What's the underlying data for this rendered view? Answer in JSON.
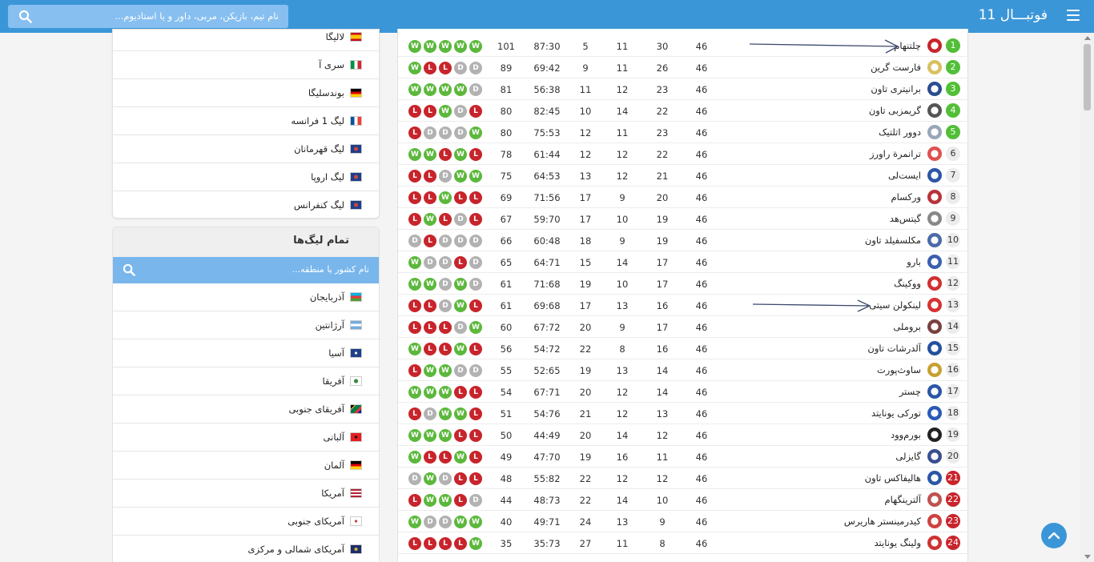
{
  "header": {
    "brand": "فوتبـــال 11",
    "search_placeholder": "نام تیم، بازیکن، مربی، داور و یا استادیوم..."
  },
  "sidebar_top": {
    "items": [
      {
        "label": "لالیگا",
        "flag": "spain"
      },
      {
        "label": "سری آ",
        "flag": "italy"
      },
      {
        "label": "بوندسلیگا",
        "flag": "germany"
      },
      {
        "label": "لیگ 1 فرانسه",
        "flag": "france"
      },
      {
        "label": "لیگ قهرمانان",
        "flag": "uefa"
      },
      {
        "label": "لیگ اروپا",
        "flag": "uefa"
      },
      {
        "label": "لیگ کنفرانس",
        "flag": "uefa"
      }
    ]
  },
  "all_leagues": {
    "title": "تمام لیگ‌ها",
    "search_placeholder": "نام کشور یا منطقه...",
    "items": [
      {
        "label": "آذربایجان",
        "flag": "azerbaijan"
      },
      {
        "label": "آرژانتین",
        "flag": "argentina"
      },
      {
        "label": "آسیا",
        "flag": "asia"
      },
      {
        "label": "آفریقا",
        "flag": "africa"
      },
      {
        "label": "آفریقای جنوبی",
        "flag": "south-africa"
      },
      {
        "label": "آلبانی",
        "flag": "albania"
      },
      {
        "label": "آلمان",
        "flag": "germany"
      },
      {
        "label": "آمریکا",
        "flag": "usa"
      },
      {
        "label": "آمریکای جنوبی",
        "flag": "south-america"
      },
      {
        "label": "آمریکای شمالی و مرکزی",
        "flag": "concacaf"
      }
    ]
  },
  "standings": {
    "rows": [
      {
        "rank": "1",
        "zone": "promotion",
        "team": "چلتنهام",
        "crest": "#c8242b",
        "played": "46",
        "won": "30",
        "drawn": "11",
        "lost": "5",
        "goals": "87:30",
        "points": "101",
        "form": [
          "W",
          "W",
          "W",
          "W",
          "W"
        ]
      },
      {
        "rank": "2",
        "zone": "promotion",
        "team": "فارست گرین",
        "crest": "#d8c060",
        "played": "46",
        "won": "26",
        "drawn": "11",
        "lost": "9",
        "goals": "69:42",
        "points": "89",
        "form": [
          "D",
          "D",
          "L",
          "L",
          "W"
        ]
      },
      {
        "rank": "3",
        "zone": "promotion",
        "team": "برانیتری تاون",
        "crest": "#2a4d8f",
        "played": "46",
        "won": "23",
        "drawn": "12",
        "lost": "11",
        "goals": "56:38",
        "points": "81",
        "form": [
          "D",
          "W",
          "W",
          "W",
          "W"
        ]
      },
      {
        "rank": "4",
        "zone": "promotion",
        "team": "گریمزبی تاون",
        "crest": "#555555",
        "played": "46",
        "won": "22",
        "drawn": "14",
        "lost": "10",
        "goals": "82:45",
        "points": "80",
        "form": [
          "L",
          "D",
          "W",
          "L",
          "L"
        ]
      },
      {
        "rank": "5",
        "zone": "promotion",
        "team": "دوور اتلتیک",
        "crest": "#9aa6b8",
        "played": "46",
        "won": "23",
        "drawn": "11",
        "lost": "12",
        "goals": "75:53",
        "points": "80",
        "form": [
          "W",
          "D",
          "D",
          "D",
          "L"
        ]
      },
      {
        "rank": "6",
        "zone": "none",
        "team": "ترانمرة راورز",
        "crest": "#e05050",
        "played": "46",
        "won": "22",
        "drawn": "12",
        "lost": "12",
        "goals": "61:44",
        "points": "78",
        "form": [
          "L",
          "W",
          "L",
          "W",
          "W"
        ]
      },
      {
        "rank": "7",
        "zone": "none",
        "team": "ایست‌لی",
        "crest": "#2a56a8",
        "played": "46",
        "won": "21",
        "drawn": "12",
        "lost": "13",
        "goals": "64:53",
        "points": "75",
        "form": [
          "W",
          "W",
          "D",
          "L",
          "L"
        ]
      },
      {
        "rank": "8",
        "zone": "none",
        "team": "ورکسام",
        "crest": "#b8323a",
        "played": "46",
        "won": "20",
        "drawn": "9",
        "lost": "17",
        "goals": "71:56",
        "points": "69",
        "form": [
          "L",
          "L",
          "W",
          "L",
          "L"
        ]
      },
      {
        "rank": "9",
        "zone": "none",
        "team": "گیتس‌هد",
        "crest": "#888888",
        "played": "46",
        "won": "19",
        "drawn": "10",
        "lost": "17",
        "goals": "59:70",
        "points": "67",
        "form": [
          "L",
          "D",
          "L",
          "W",
          "L"
        ]
      },
      {
        "rank": "10",
        "zone": "none",
        "team": "مکلسفیلد تاون",
        "crest": "#4a6aa8",
        "played": "46",
        "won": "19",
        "drawn": "9",
        "lost": "18",
        "goals": "60:48",
        "points": "66",
        "form": [
          "D",
          "D",
          "D",
          "L",
          "D"
        ]
      },
      {
        "rank": "11",
        "zone": "none",
        "team": "بارو",
        "crest": "#3a5fb0",
        "played": "46",
        "won": "17",
        "drawn": "14",
        "lost": "15",
        "goals": "64:71",
        "points": "65",
        "form": [
          "D",
          "L",
          "D",
          "D",
          "W"
        ]
      },
      {
        "rank": "12",
        "zone": "none",
        "team": "ووکینگ",
        "crest": "#d03030",
        "played": "46",
        "won": "17",
        "drawn": "10",
        "lost": "19",
        "goals": "71:68",
        "points": "61",
        "form": [
          "D",
          "W",
          "D",
          "W",
          "W"
        ]
      },
      {
        "rank": "13",
        "zone": "none",
        "team": "لینکولن سیتی",
        "crest": "#d83030",
        "played": "46",
        "won": "16",
        "drawn": "13",
        "lost": "17",
        "goals": "69:68",
        "points": "61",
        "form": [
          "L",
          "W",
          "D",
          "L",
          "L"
        ]
      },
      {
        "rank": "14",
        "zone": "none",
        "team": "بروملی",
        "crest": "#7a4040",
        "played": "46",
        "won": "17",
        "drawn": "9",
        "lost": "20",
        "goals": "67:72",
        "points": "60",
        "form": [
          "W",
          "D",
          "L",
          "L",
          "L"
        ]
      },
      {
        "rank": "15",
        "zone": "none",
        "team": "آلدرشات تاون",
        "crest": "#2450a0",
        "played": "46",
        "won": "16",
        "drawn": "8",
        "lost": "22",
        "goals": "54:72",
        "points": "56",
        "form": [
          "L",
          "W",
          "L",
          "L",
          "W"
        ]
      },
      {
        "rank": "16",
        "zone": "none",
        "team": "ساوث‌پورت",
        "crest": "#c8a030",
        "played": "46",
        "won": "14",
        "drawn": "13",
        "lost": "19",
        "goals": "52:65",
        "points": "55",
        "form": [
          "D",
          "D",
          "W",
          "W",
          "L"
        ]
      },
      {
        "rank": "17",
        "zone": "none",
        "team": "چستر",
        "crest": "#2a56a8",
        "played": "46",
        "won": "14",
        "drawn": "12",
        "lost": "20",
        "goals": "67:71",
        "points": "54",
        "form": [
          "L",
          "L",
          "W",
          "W",
          "W"
        ]
      },
      {
        "rank": "18",
        "zone": "none",
        "team": "تورکی یونایتد",
        "crest": "#2a5ab8",
        "played": "46",
        "won": "13",
        "drawn": "12",
        "lost": "21",
        "goals": "54:76",
        "points": "51",
        "form": [
          "L",
          "W",
          "W",
          "D",
          "L"
        ]
      },
      {
        "rank": "19",
        "zone": "none",
        "team": "بورم‌وود",
        "crest": "#222222",
        "played": "46",
        "won": "12",
        "drawn": "14",
        "lost": "20",
        "goals": "44:49",
        "points": "50",
        "form": [
          "L",
          "L",
          "W",
          "W",
          "W"
        ]
      },
      {
        "rank": "20",
        "zone": "none",
        "team": "گایزلی",
        "crest": "#3a4e90",
        "played": "46",
        "won": "11",
        "drawn": "16",
        "lost": "19",
        "goals": "47:70",
        "points": "49",
        "form": [
          "L",
          "W",
          "L",
          "L",
          "W"
        ]
      },
      {
        "rank": "21",
        "zone": "relegation",
        "team": "هالیفاکس تاون",
        "crest": "#2a56a8",
        "played": "46",
        "won": "12",
        "drawn": "12",
        "lost": "22",
        "goals": "55:82",
        "points": "48",
        "form": [
          "L",
          "L",
          "D",
          "W",
          "D"
        ]
      },
      {
        "rank": "22",
        "zone": "relegation",
        "team": "آلترینگهام",
        "crest": "#c05050",
        "played": "46",
        "won": "10",
        "drawn": "14",
        "lost": "22",
        "goals": "48:73",
        "points": "44",
        "form": [
          "D",
          "L",
          "W",
          "W",
          "L"
        ]
      },
      {
        "rank": "23",
        "zone": "relegation",
        "team": "کیدرمینستر هاریرس",
        "crest": "#d04040",
        "played": "46",
        "won": "9",
        "drawn": "13",
        "lost": "24",
        "goals": "49:71",
        "points": "40",
        "form": [
          "W",
          "W",
          "D",
          "D",
          "W"
        ]
      },
      {
        "rank": "24",
        "zone": "relegation",
        "team": "ولینگ یونایتد",
        "crest": "#d03030",
        "played": "46",
        "won": "8",
        "drawn": "11",
        "lost": "27",
        "goals": "35:73",
        "points": "35",
        "form": [
          "W",
          "L",
          "L",
          "L",
          "L"
        ]
      }
    ]
  },
  "colors": {
    "header": "#3b96d8",
    "win": "#5cb83c",
    "loss": "#c8242b",
    "draw": "#b2b2b2",
    "promotion": "#52bf37",
    "relegation": "#c8242b"
  }
}
